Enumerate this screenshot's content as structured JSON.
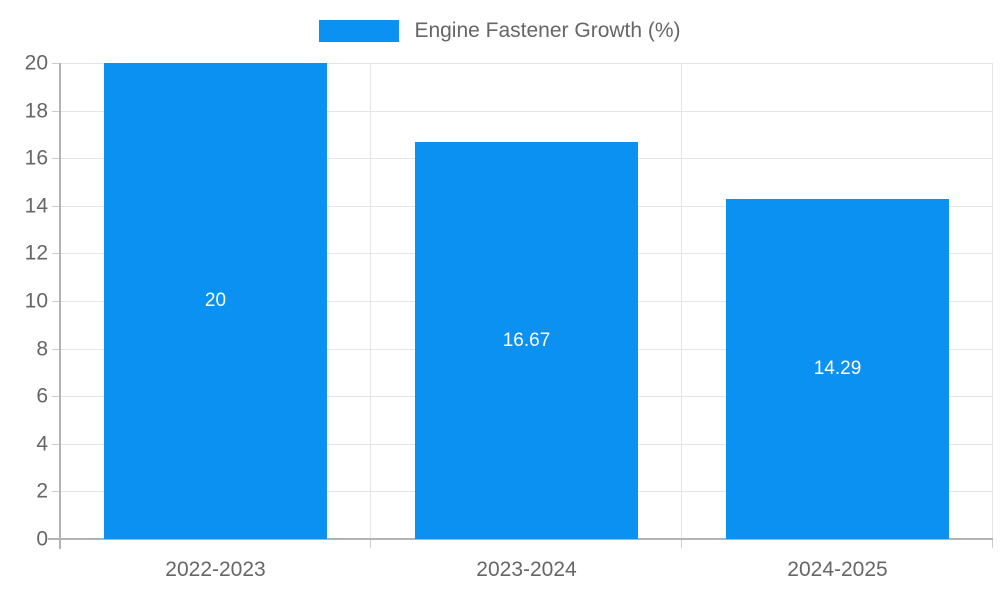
{
  "legend": {
    "label": "Engine Fastener Growth (%)"
  },
  "colors": {
    "bar": "#0a91f2",
    "grid": "#e5e5e5",
    "axis": "#b3b3b3",
    "tick_mark": "#cccccc",
    "tick_text": "#666666",
    "bar_label_text": "#ffffff",
    "background": "#ffffff"
  },
  "chart_data": {
    "type": "bar",
    "title": "",
    "categories": [
      "2022-2023",
      "2023-2024",
      "2024-2025"
    ],
    "series": [
      {
        "name": "Engine Fastener Growth (%)",
        "values": [
          20,
          16.67,
          14.29
        ]
      }
    ],
    "data_labels": [
      "20",
      "16.67",
      "14.29"
    ],
    "xlabel": "",
    "ylabel": "",
    "ylim": [
      0,
      20
    ],
    "ytick_step": 2,
    "yticks": [
      0,
      2,
      4,
      6,
      8,
      10,
      12,
      14,
      16,
      18,
      20
    ],
    "grid": true,
    "legend_position": "top",
    "bar_width_fraction": 0.72
  }
}
